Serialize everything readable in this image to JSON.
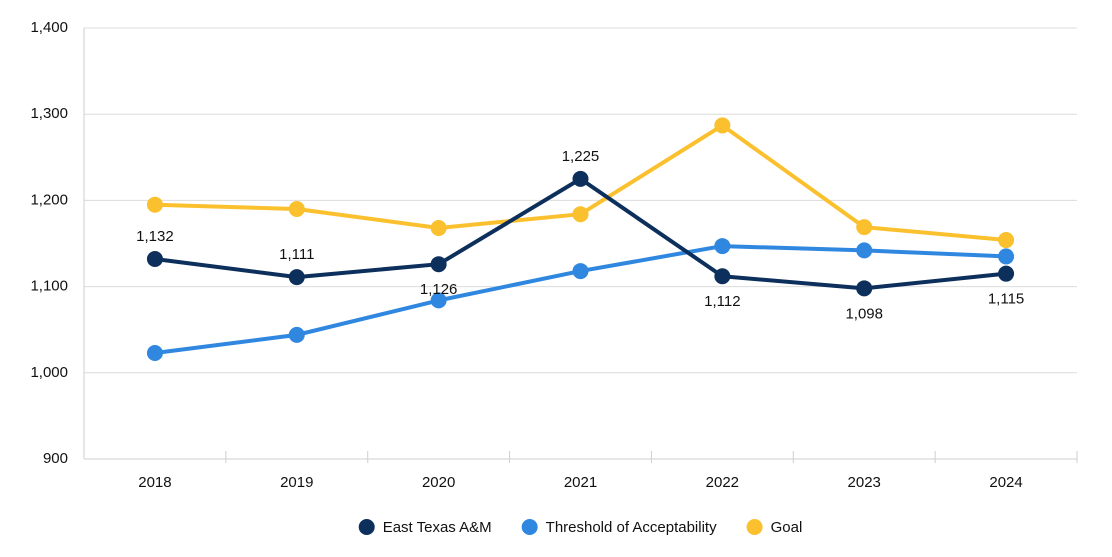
{
  "chart_data": {
    "type": "line",
    "categories": [
      "2018",
      "2019",
      "2020",
      "2021",
      "2022",
      "2023",
      "2024"
    ],
    "series": [
      {
        "name": "East Texas A&M",
        "color": "#0c2f5c",
        "values": [
          1132,
          1111,
          1126,
          1225,
          1112,
          1098,
          1115
        ],
        "value_labels": [
          "1,132",
          "1,111",
          "1,126",
          "1,225",
          "1,112",
          "1,098",
          "1,115"
        ]
      },
      {
        "name": "Threshold of Acceptability",
        "color": "#2f87e0",
        "values": [
          1023,
          1044,
          1084,
          1118,
          1147,
          1142,
          1135
        ]
      },
      {
        "name": "Goal",
        "color": "#fbc02d",
        "values": [
          1195,
          1190,
          1168,
          1184,
          1287,
          1169,
          1154
        ]
      }
    ],
    "ylim": [
      900,
      1400
    ],
    "yticks": [
      {
        "value": 900,
        "label": "900"
      },
      {
        "value": 1000,
        "label": "1,000"
      },
      {
        "value": 1100,
        "label": "1,100"
      },
      {
        "value": 1200,
        "label": "1,200"
      },
      {
        "value": 1300,
        "label": "1,300"
      },
      {
        "value": 1400,
        "label": "1,400"
      }
    ],
    "grid": true,
    "legend": "bottom"
  }
}
